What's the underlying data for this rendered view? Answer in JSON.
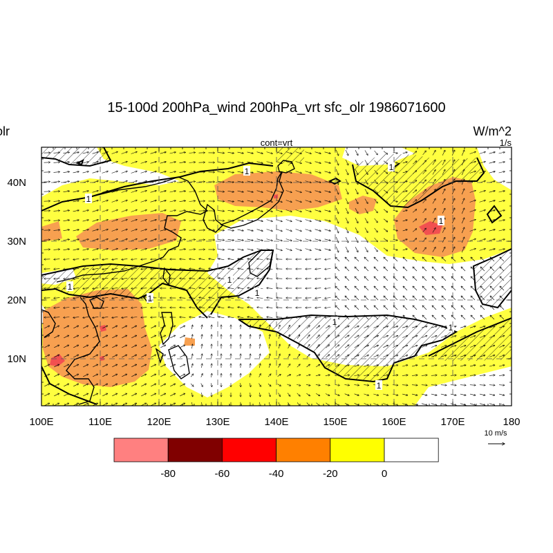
{
  "chart_data": {
    "type": "heatmap",
    "title": "15-100d 200hPa_wind 200hPa_vrt sfc_olr 1986071600",
    "left_string": "olr",
    "right_string": "W/m^2",
    "right_sub_string": "1/s",
    "center_sub_string": "cont=vrt",
    "x_axis": {
      "range": [
        100,
        180
      ],
      "ticks": [
        100,
        110,
        120,
        130,
        140,
        150,
        160,
        170,
        180
      ],
      "tick_labels": [
        "100E",
        "110E",
        "120E",
        "130E",
        "140E",
        "150E",
        "160E",
        "170E",
        "180"
      ]
    },
    "y_axis": {
      "range": [
        2,
        46
      ],
      "ticks": [
        10,
        20,
        30,
        40
      ],
      "tick_labels": [
        "10N",
        "20N",
        "30N",
        "40N"
      ]
    },
    "grid": "dashed at labeled ticks",
    "colorbar": {
      "labels": [
        "-80",
        "-60",
        "-40",
        "-20",
        "0"
      ],
      "colors": [
        "#ff8080",
        "#800000",
        "#ff0000",
        "#ff8000",
        "#ffff00",
        "#ffffff"
      ]
    },
    "contour": {
      "field": "vrt",
      "label": "1",
      "hatched": "positive vorticity regions"
    },
    "reference_vector": {
      "label": "10 m/s"
    },
    "map_colors": {
      "white": "#ffffff",
      "yellow": "#ffff40",
      "orange": "#f7a050",
      "red": "#f25050"
    }
  }
}
